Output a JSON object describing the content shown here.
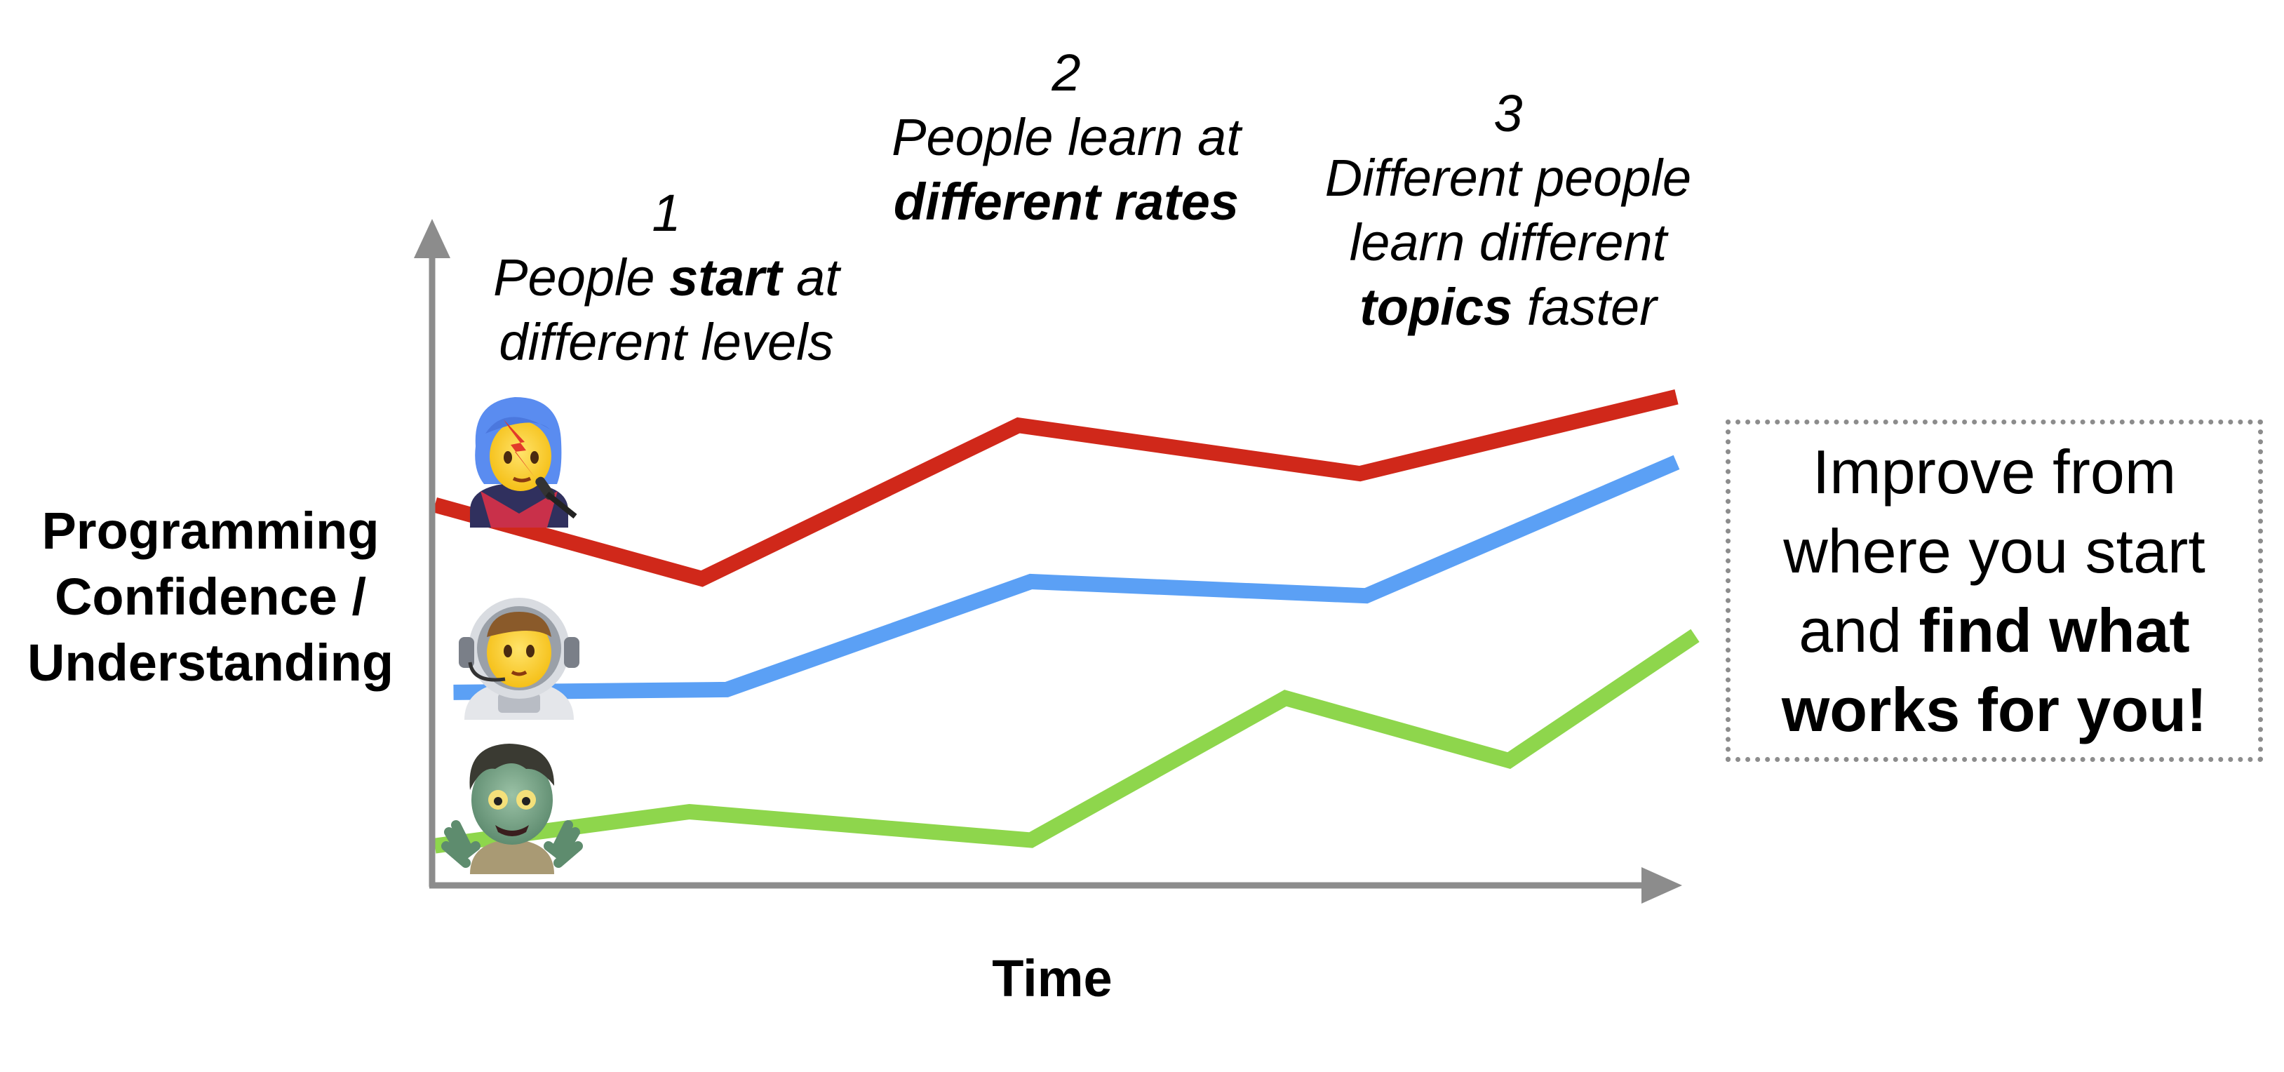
{
  "annotations": [
    {
      "number": "1",
      "pre": "People ",
      "bold": "start",
      "post": " at",
      "line3": "different levels"
    },
    {
      "number": "2",
      "line2": "People learn at",
      "bold": "different rates"
    },
    {
      "number": "3",
      "line2": "Different people",
      "line3": "learn different",
      "bold": "topics",
      "post": " faster"
    }
  ],
  "callout": {
    "line1": "Improve from",
    "line2": "where you start",
    "pre3": "and ",
    "bold3": "find what",
    "bold4": "works for you!"
  },
  "axes": {
    "ylabel_lines": [
      "Programming",
      "Confidence /",
      "Understanding"
    ],
    "xlabel": "Time"
  },
  "icons": [
    "singer-emoji-icon",
    "astronaut-emoji-icon",
    "zombie-emoji-icon"
  ],
  "chart_data": {
    "type": "line",
    "xlabel": "Time",
    "ylabel": "Programming Confidence / Understanding",
    "xlim": [
      0,
      100
    ],
    "ylim": [
      0,
      100
    ],
    "grid": false,
    "series": [
      {
        "color": "#d0281a",
        "icon": "singer-emoji-icon",
        "points": [
          [
            0,
            64
          ],
          [
            21.5,
            51
          ],
          [
            47,
            78
          ],
          [
            74.5,
            69.5
          ],
          [
            100,
            83
          ]
        ]
      },
      {
        "color": "#5ba0f5",
        "icon": "astronaut-emoji-icon",
        "points": [
          [
            1.5,
            31
          ],
          [
            23.5,
            31.5
          ],
          [
            48,
            50.5
          ],
          [
            75,
            48
          ],
          [
            100,
            71.5
          ]
        ]
      },
      {
        "color": "#8ed64c",
        "icon": "zombie-emoji-icon",
        "points": [
          [
            0,
            4
          ],
          [
            20.5,
            10
          ],
          [
            48,
            5
          ],
          [
            68.5,
            30
          ],
          [
            86.5,
            19
          ],
          [
            101.5,
            41
          ]
        ]
      }
    ]
  }
}
